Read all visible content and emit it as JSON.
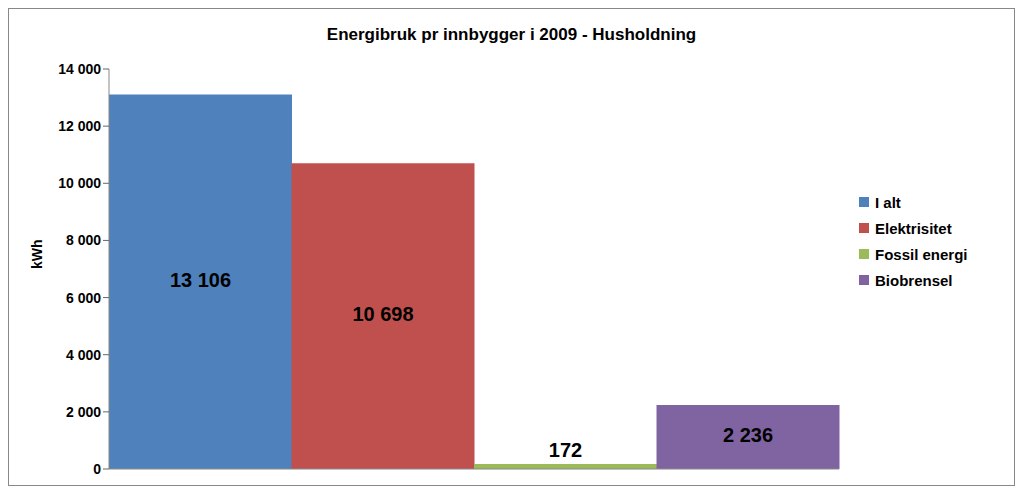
{
  "chart_data": {
    "type": "bar",
    "title": "Energibruk pr innbygger i 2009 - Husholdning",
    "ylabel": "kWh",
    "categories": [
      "I alt",
      "Elektrisitet",
      "Fossil energi",
      "Biobrensel"
    ],
    "values": [
      13106,
      10698,
      172,
      2236
    ],
    "value_labels": [
      "13 106",
      "10 698",
      "172",
      "2 236"
    ],
    "colors": [
      "#4f81bd",
      "#c0504d",
      "#9bbb59",
      "#8064a2"
    ],
    "ylim": [
      0,
      14000
    ],
    "yticks": [
      0,
      {
        "value": 2000,
        "label": "2 000"
      },
      {
        "value": 4000,
        "label": "4 000"
      },
      {
        "value": 6000,
        "label": "6 000"
      },
      {
        "value": 8000,
        "label": "8 000"
      },
      {
        "value": 10000,
        "label": "10 000"
      },
      {
        "value": 12000,
        "label": "12 000"
      },
      {
        "value": 14000,
        "label": "14 000"
      }
    ],
    "grid": false,
    "legend": "right",
    "data_labels": true,
    "tick_labels": "y"
  }
}
